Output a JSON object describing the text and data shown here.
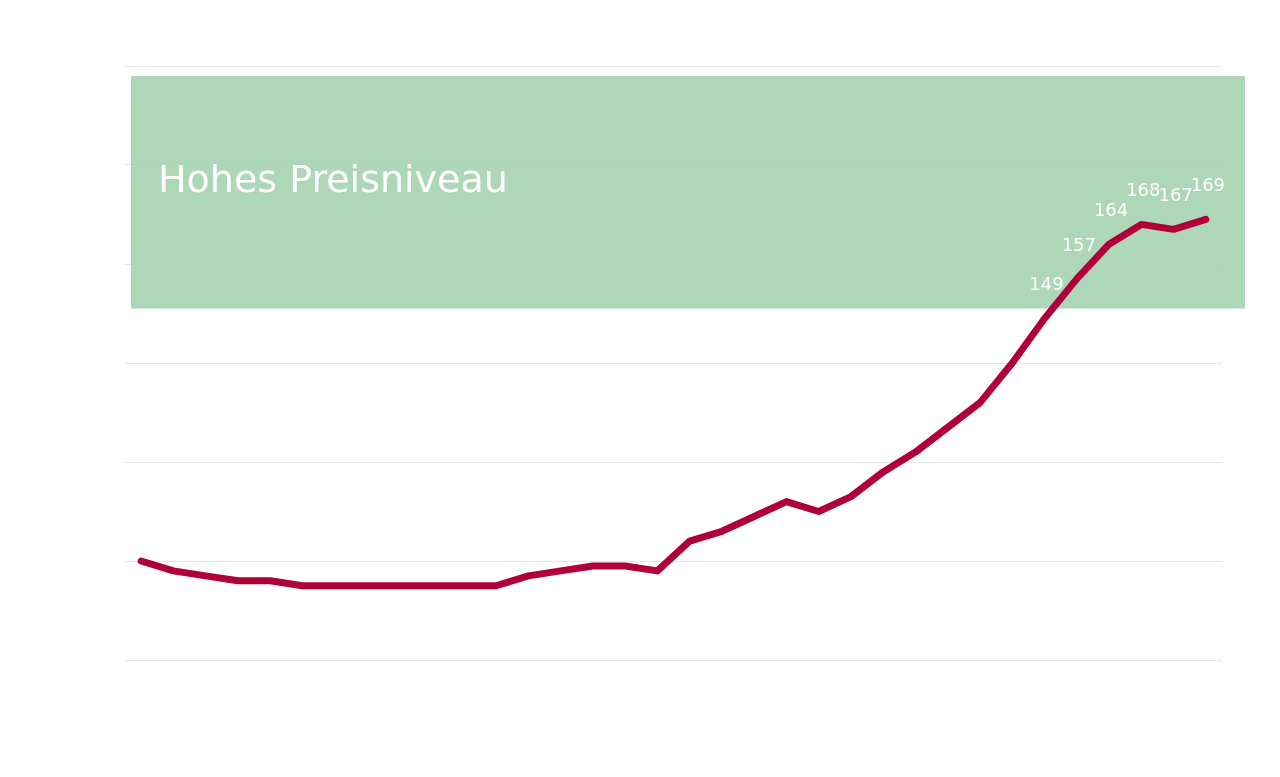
{
  "chart_data": {
    "type": "line",
    "categories": [
      null,
      null,
      null,
      null,
      null,
      null,
      null,
      null,
      null,
      null,
      null,
      null,
      null,
      null,
      null,
      null,
      null,
      null,
      null,
      null,
      null,
      null,
      null,
      null,
      null,
      null,
      null,
      null,
      null,
      null,
      null,
      null,
      null,
      null
    ],
    "series": [
      {
        "color": "#b0003a",
        "values": [
          100,
          98,
          97,
          96,
          96,
          95,
          95,
          95,
          95,
          95,
          95,
          95,
          97,
          98,
          99,
          99,
          98,
          104,
          106,
          109,
          112,
          110,
          113,
          118,
          122,
          127,
          132,
          140,
          149,
          157,
          164,
          168,
          167,
          169
        ],
        "value_labels": [
          null,
          null,
          null,
          null,
          null,
          null,
          null,
          null,
          null,
          null,
          null,
          null,
          null,
          null,
          null,
          null,
          null,
          null,
          null,
          null,
          null,
          null,
          null,
          null,
          null,
          null,
          null,
          null,
          "149",
          "157",
          "164",
          "168",
          "167",
          "169"
        ]
      }
    ],
    "ylim": [
      80,
      200
    ],
    "yticks": [
      {
        "value": 80,
        "label": null
      },
      {
        "value": 100,
        "label": null
      },
      {
        "value": 120,
        "label": null
      },
      {
        "value": 140,
        "label": null
      },
      {
        "value": 160,
        "label": null
      },
      {
        "value": 180,
        "label": null
      },
      {
        "value": 200,
        "label": null
      }
    ],
    "bands": [
      {
        "axis": "y",
        "from": 151,
        "to": 198,
        "label": "Hohes Preisniveau",
        "color": "#a7d3b2"
      }
    ],
    "grid": "y",
    "tick_labels": false,
    "legend": false,
    "marker": "none",
    "line_style": "solid"
  }
}
